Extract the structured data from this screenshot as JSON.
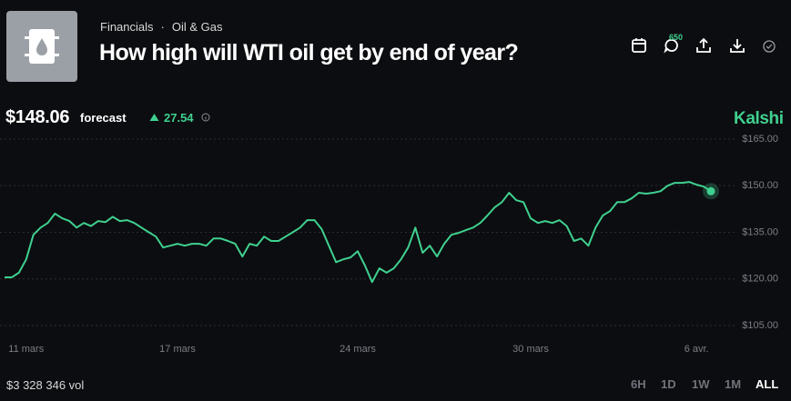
{
  "header": {
    "breadcrumb": [
      "Financials",
      "Oil & Gas"
    ],
    "title": "How high will WTI oil get by end of year?",
    "comment_count": "650"
  },
  "price": {
    "value": "$148.06",
    "label": "forecast",
    "change": "27.54"
  },
  "brand": "Kalshi",
  "chart_data": {
    "type": "line",
    "categories": [
      null,
      null,
      null,
      "11 mars",
      null,
      null,
      null,
      null,
      null,
      null,
      null,
      null,
      null,
      null,
      null,
      null,
      null,
      null,
      null,
      null,
      null,
      null,
      null,
      null,
      "17 mars",
      null,
      null,
      null,
      null,
      null,
      null,
      null,
      null,
      null,
      null,
      null,
      null,
      null,
      null,
      null,
      null,
      null,
      null,
      null,
      null,
      null,
      null,
      null,
      null,
      "24 mars",
      null,
      null,
      null,
      null,
      null,
      null,
      null,
      null,
      null,
      null,
      null,
      null,
      null,
      null,
      null,
      null,
      null,
      null,
      null,
      null,
      null,
      null,
      null,
      "30 mars",
      null,
      null,
      null,
      null,
      null,
      null,
      null,
      null,
      null,
      null,
      null,
      null,
      null,
      null,
      null,
      null,
      null,
      null,
      null,
      null,
      null,
      null,
      "6 avr.",
      null,
      null
    ],
    "series": [
      {
        "color": "#3fd08f",
        "values": [
          120.5,
          120.5,
          122,
          126.3,
          134.2,
          136.5,
          138,
          141,
          139.5,
          138.6,
          136.5,
          138,
          137,
          138.6,
          138.3,
          140,
          138.6,
          138.9,
          138,
          136.5,
          135,
          133.6,
          130.1,
          130.7,
          131.3,
          130.7,
          131.3,
          131.3,
          130.7,
          133,
          133,
          132.2,
          131.3,
          127.2,
          131.3,
          130.7,
          133.6,
          132.2,
          132.2,
          133.6,
          135,
          136.5,
          138.9,
          138.9,
          136,
          130.7,
          125.4,
          126.3,
          126.9,
          128.9,
          124.3,
          119,
          123.4,
          122,
          123.4,
          126.3,
          130.1,
          136.5,
          128.4,
          130.7,
          127.2,
          131.3,
          134.2,
          134.8,
          135.7,
          136.5,
          138,
          140.4,
          143,
          144.7,
          147.7,
          145.3,
          144.7,
          139.5,
          138,
          138.6,
          138,
          138.9,
          137,
          132.2,
          133,
          130.7,
          136.5,
          140.4,
          141.8,
          144.7,
          144.7,
          145.9,
          147.7,
          147.4,
          147.7,
          148.2,
          150,
          150.9,
          150.9,
          151.2,
          150.3,
          149.7,
          148.2
        ]
      }
    ],
    "ylim": [
      101.5,
      167.3
    ],
    "yticks": [
      {
        "value": 105,
        "label": "$105.00"
      },
      {
        "value": 120,
        "label": "$120.00"
      },
      {
        "value": 135,
        "label": "$135.00"
      },
      {
        "value": 150,
        "label": "$150.00"
      },
      {
        "value": 165,
        "label": "$165.00"
      }
    ],
    "grid": true
  },
  "volume": "$3 328 346 vol",
  "ranges": [
    "6H",
    "1D",
    "1W",
    "1M",
    "ALL"
  ],
  "active_range": "ALL"
}
